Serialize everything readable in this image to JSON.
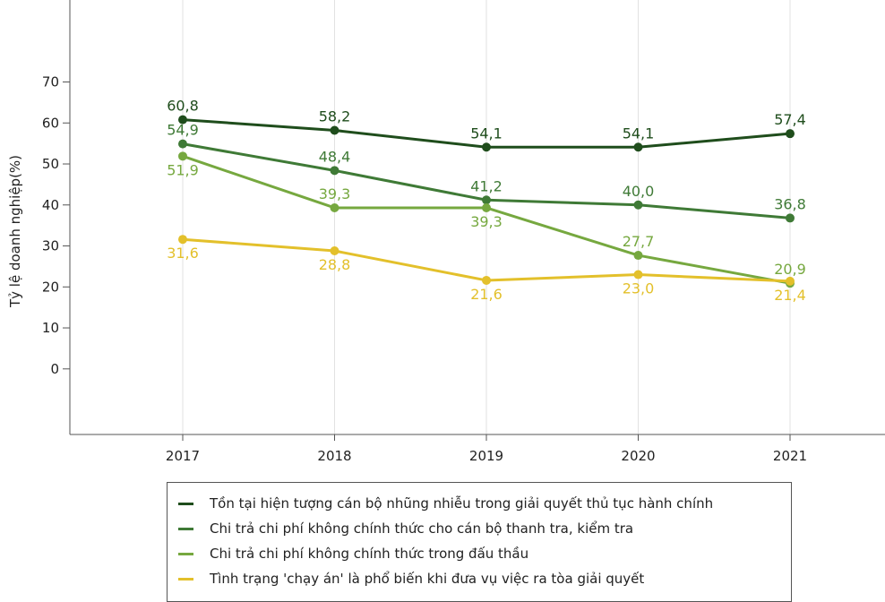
{
  "chart_data": {
    "type": "line",
    "categories": [
      "2017",
      "2018",
      "2019",
      "2020",
      "2021"
    ],
    "ylabel": "Tỷ lệ doanh nghiệp(%)",
    "xlabel": "",
    "ylim": [
      -16,
      90
    ],
    "yticks": [
      "0",
      "10",
      "20",
      "30",
      "40",
      "50",
      "60",
      "70"
    ],
    "grid": "vertical",
    "legend": "bottom",
    "series": [
      {
        "name": "Tồn tại hiện tượng cán bộ nhũng nhiễu trong giải quyết thủ tục hành chính",
        "color": "#1f4d1c",
        "values": [
          60.8,
          58.2,
          54.1,
          54.1,
          57.4
        ],
        "labels": [
          "60,8",
          "58,2",
          "54,1",
          "54,1",
          "57,4"
        ]
      },
      {
        "name": "Chi trả chi phí không chính thức cho cán bộ thanh tra, kiểm tra",
        "color": "#3f7a36",
        "values": [
          54.9,
          48.4,
          41.2,
          40.0,
          36.8
        ],
        "labels": [
          "54,9",
          "48,4",
          "41,2",
          "40,0",
          "36,8"
        ]
      },
      {
        "name": "Chi trả chi phí không chính thức trong đấu thầu",
        "color": "#76a83f",
        "values": [
          51.9,
          39.3,
          39.3,
          27.7,
          20.9
        ],
        "labels": [
          "51,9",
          "39,3",
          "39,3",
          "27,7",
          "20,9"
        ]
      },
      {
        "name": "Tình trạng 'chạy án' là phổ biến khi đưa vụ việc ra tòa giải quyết",
        "color": "#e3c02b",
        "values": [
          31.6,
          28.8,
          21.6,
          23.0,
          21.4
        ],
        "labels": [
          "31,6",
          "28,8",
          "21,6",
          "23,0",
          "21,4"
        ]
      }
    ]
  }
}
